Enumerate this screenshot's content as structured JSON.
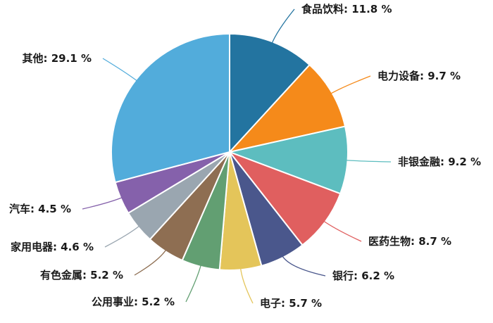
{
  "chart_data": {
    "type": "pie",
    "title": "",
    "start_angle_deg": 0,
    "direction": "clockwise",
    "center": [
      326,
      216
    ],
    "radius": 168,
    "label_format": "{name}: {value} %",
    "slices": [
      {
        "name": "食品饮料",
        "value": 11.8,
        "color": "#2374a0",
        "label_x": 428,
        "label_y": 18,
        "anchor": "start"
      },
      {
        "name": "电力设备",
        "value": 9.7,
        "color": "#f58a1a",
        "label_x": 536,
        "label_y": 113,
        "anchor": "start"
      },
      {
        "name": "非银金融",
        "value": 9.2,
        "color": "#5dbdbf",
        "label_x": 565,
        "label_y": 235,
        "anchor": "start"
      },
      {
        "name": "医药生物",
        "value": 8.7,
        "color": "#e05f5f",
        "label_x": 523,
        "label_y": 348,
        "anchor": "start"
      },
      {
        "name": "银行",
        "value": 6.2,
        "color": "#4a578c",
        "label_x": 472,
        "label_y": 397,
        "anchor": "start"
      },
      {
        "name": "电子",
        "value": 5.7,
        "color": "#e4c55a",
        "label_x": 369,
        "label_y": 436,
        "anchor": "start"
      },
      {
        "name": "公用事业",
        "value": 5.2,
        "color": "#629f72",
        "label_x": 248,
        "label_y": 434,
        "anchor": "end"
      },
      {
        "name": "有色金属",
        "value": 5.2,
        "color": "#8e6e52",
        "label_x": 175,
        "label_y": 396,
        "anchor": "end"
      },
      {
        "name": "家用电器",
        "value": 4.6,
        "color": "#9aa6b0",
        "label_x": 133,
        "label_y": 356,
        "anchor": "end"
      },
      {
        "name": "汽车",
        "value": 4.5,
        "color": "#8561ab",
        "label_x": 101,
        "label_y": 302,
        "anchor": "end"
      },
      {
        "name": "其他",
        "value": 29.1,
        "color": "#52acdb",
        "label_x": 130,
        "label_y": 88,
        "anchor": "end"
      }
    ]
  }
}
